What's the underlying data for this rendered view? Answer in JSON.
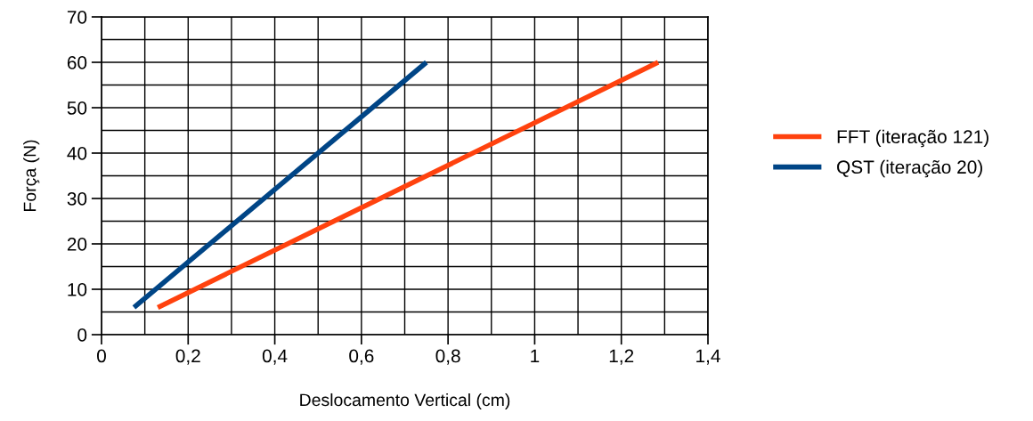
{
  "chart_data": {
    "type": "line",
    "xlabel": "Deslocamento Vertical (cm)",
    "ylabel": "Força (N)",
    "series": [
      {
        "name": "FFT (iteração 121)",
        "color": "#ff420e",
        "x": [
          0.13,
          1.285
        ],
        "values": [
          6,
          60
        ]
      },
      {
        "name": "QST (iteração 20)",
        "color": "#004586",
        "x": [
          0.075,
          0.75
        ],
        "values": [
          6,
          60
        ]
      }
    ],
    "xlim": [
      0,
      1.4
    ],
    "ylim": [
      0,
      70
    ],
    "xticks": [
      {
        "value": 0,
        "label": "0"
      },
      {
        "value": 0.1,
        "label": null
      },
      {
        "value": 0.2,
        "label": "0,2"
      },
      {
        "value": 0.3,
        "label": null
      },
      {
        "value": 0.4,
        "label": "0,4"
      },
      {
        "value": 0.5,
        "label": null
      },
      {
        "value": 0.6,
        "label": "0,6"
      },
      {
        "value": 0.7,
        "label": null
      },
      {
        "value": 0.8,
        "label": "0,8"
      },
      {
        "value": 0.9,
        "label": null
      },
      {
        "value": 1,
        "label": "1"
      },
      {
        "value": 1.1,
        "label": null
      },
      {
        "value": 1.2,
        "label": "1,2"
      },
      {
        "value": 1.3,
        "label": null
      },
      {
        "value": 1.4,
        "label": "1,4"
      }
    ],
    "yticks": [
      0,
      {
        "value": 5,
        "label": null
      },
      10,
      {
        "value": 15,
        "label": null
      },
      20,
      {
        "value": 25,
        "label": null
      },
      30,
      {
        "value": 35,
        "label": null
      },
      40,
      {
        "value": 45,
        "label": null
      },
      50,
      {
        "value": 55,
        "label": null
      },
      60,
      {
        "value": 65,
        "label": null
      },
      70
    ],
    "grid": true,
    "legend": "right",
    "marker": "none",
    "line_style": "solid"
  }
}
